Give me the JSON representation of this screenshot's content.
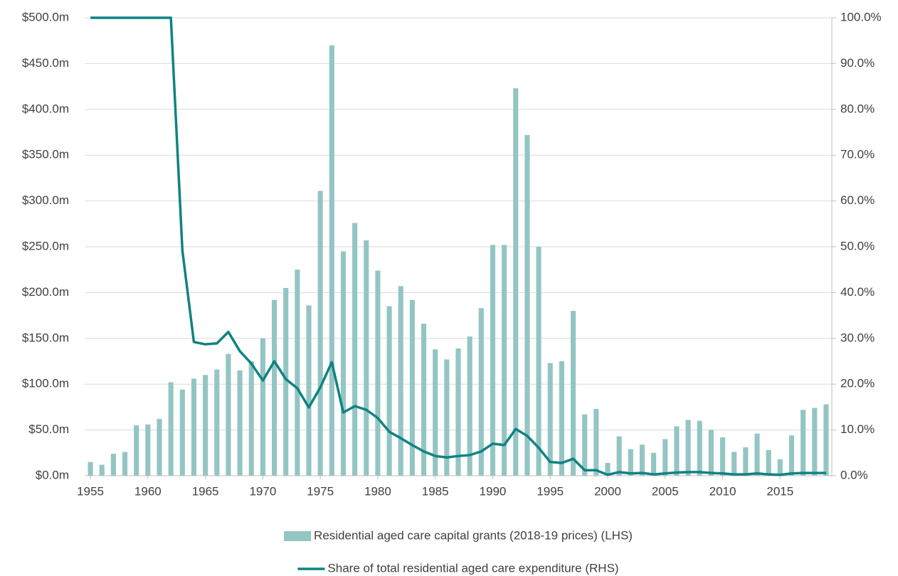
{
  "chart_data": {
    "type": "bar-line",
    "x": [
      1955,
      1956,
      1957,
      1958,
      1959,
      1960,
      1961,
      1962,
      1963,
      1964,
      1965,
      1966,
      1967,
      1968,
      1969,
      1970,
      1971,
      1972,
      1973,
      1974,
      1975,
      1976,
      1977,
      1978,
      1979,
      1980,
      1981,
      1982,
      1983,
      1984,
      1985,
      1986,
      1987,
      1988,
      1989,
      1990,
      1991,
      1992,
      1993,
      1994,
      1995,
      1996,
      1997,
      1998,
      1999,
      2000,
      2001,
      2002,
      2003,
      2004,
      2005,
      2006,
      2007,
      2008,
      2009,
      2010,
      2011,
      2012,
      2013,
      2014,
      2015,
      2016,
      2017,
      2018,
      2019
    ],
    "xlim": [
      1954.5,
      2019.5
    ],
    "xticks": [
      1955,
      1960,
      1965,
      1970,
      1975,
      1980,
      1985,
      1990,
      1995,
      2000,
      2005,
      2010,
      2015
    ],
    "ylim": [
      0,
      500
    ],
    "yticks": [
      {
        "value": 0,
        "label": "$0.0m"
      },
      {
        "value": 50,
        "label": "$50.0m"
      },
      {
        "value": 100,
        "label": "$100.0m"
      },
      {
        "value": 150,
        "label": "$150.0m"
      },
      {
        "value": 200,
        "label": "$200.0m"
      },
      {
        "value": 250,
        "label": "$250.0m"
      },
      {
        "value": 300,
        "label": "$300.0m"
      },
      {
        "value": 350,
        "label": "$350.0m"
      },
      {
        "value": 400,
        "label": "$400.0m"
      },
      {
        "value": 450,
        "label": "$450.0m"
      },
      {
        "value": 500,
        "label": "$500.0m"
      }
    ],
    "y2lim": [
      0,
      100
    ],
    "y2ticks": [
      {
        "value": 0,
        "label": "0.0%"
      },
      {
        "value": 10,
        "label": "10.0%"
      },
      {
        "value": 20,
        "label": "20.0%"
      },
      {
        "value": 30,
        "label": "30.0%"
      },
      {
        "value": 40,
        "label": "40.0%"
      },
      {
        "value": 50,
        "label": "50.0%"
      },
      {
        "value": 60,
        "label": "60.0%"
      },
      {
        "value": 70,
        "label": "70.0%"
      },
      {
        "value": 80,
        "label": "80.0%"
      },
      {
        "value": 90,
        "label": "90.0%"
      },
      {
        "value": 100,
        "label": "100.0%"
      }
    ],
    "grid": true,
    "legend": "bottom",
    "series": [
      {
        "name": "Residential aged care capital grants (2018-19 prices) (LHS)",
        "type": "bar",
        "color": "#93c5c3",
        "values": [
          15,
          12,
          24,
          26,
          55,
          56,
          62,
          102,
          94,
          106,
          110,
          116,
          133,
          115,
          125,
          150,
          192,
          205,
          225,
          186,
          311,
          470,
          245,
          276,
          257,
          224,
          185,
          207,
          192,
          166,
          138,
          127,
          139,
          152,
          183,
          252,
          252,
          423,
          372,
          250,
          123,
          125,
          180,
          67,
          73,
          14,
          43,
          29,
          34,
          25,
          40,
          54,
          61,
          60,
          50,
          42,
          26,
          31,
          46,
          28,
          18,
          44,
          72,
          74,
          78
        ]
      },
      {
        "name": "Share of total residential aged care expenditure (RHS)",
        "type": "line",
        "axis": "y2",
        "color": "#0f8381",
        "values": [
          100,
          100,
          100,
          100,
          100,
          100,
          100,
          100,
          49.2,
          29.2,
          28.7,
          28.9,
          31.4,
          27.2,
          24.5,
          20.8,
          25,
          21.1,
          19.1,
          14.9,
          19.3,
          24.8,
          13.8,
          15.2,
          14.4,
          12.6,
          9.6,
          8.2,
          6.7,
          5.3,
          4.3,
          4.0,
          4.3,
          4.5,
          5.3,
          7.0,
          6.7,
          10.2,
          8.7,
          6.1,
          3.0,
          2.8,
          3.7,
          1.2,
          1.2,
          0.2,
          0.8,
          0.5,
          0.6,
          0.3,
          0.5,
          0.7,
          0.8,
          0.8,
          0.6,
          0.5,
          0.3,
          0.3,
          0.5,
          0.3,
          0.2,
          0.5,
          0.6,
          0.6,
          0.6
        ]
      }
    ]
  }
}
